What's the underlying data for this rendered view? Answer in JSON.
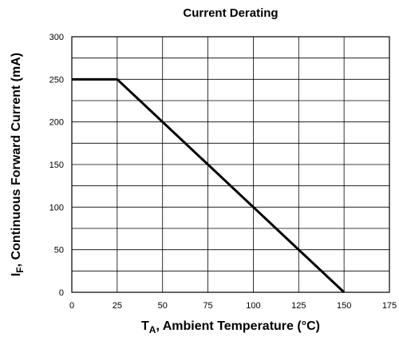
{
  "chart_data": {
    "type": "line",
    "title": "Current Derating",
    "xlabel": {
      "main": "T",
      "sub": "A",
      "rest": ", Ambient Temperature (°C)"
    },
    "ylabel": {
      "main": "I",
      "sub": "F",
      "rest": ", Continuous Forward Current (mA)"
    },
    "xlim": [
      0,
      175
    ],
    "ylim": [
      0,
      300
    ],
    "xticks": [
      0,
      25,
      50,
      75,
      100,
      125,
      150,
      175
    ],
    "yticks": [
      0,
      50,
      100,
      150,
      200,
      250,
      300
    ],
    "grid": true,
    "minor_grid_y": 25,
    "series": [
      {
        "x": [
          0,
          25,
          150
        ],
        "y": [
          250,
          250,
          0
        ]
      }
    ]
  }
}
